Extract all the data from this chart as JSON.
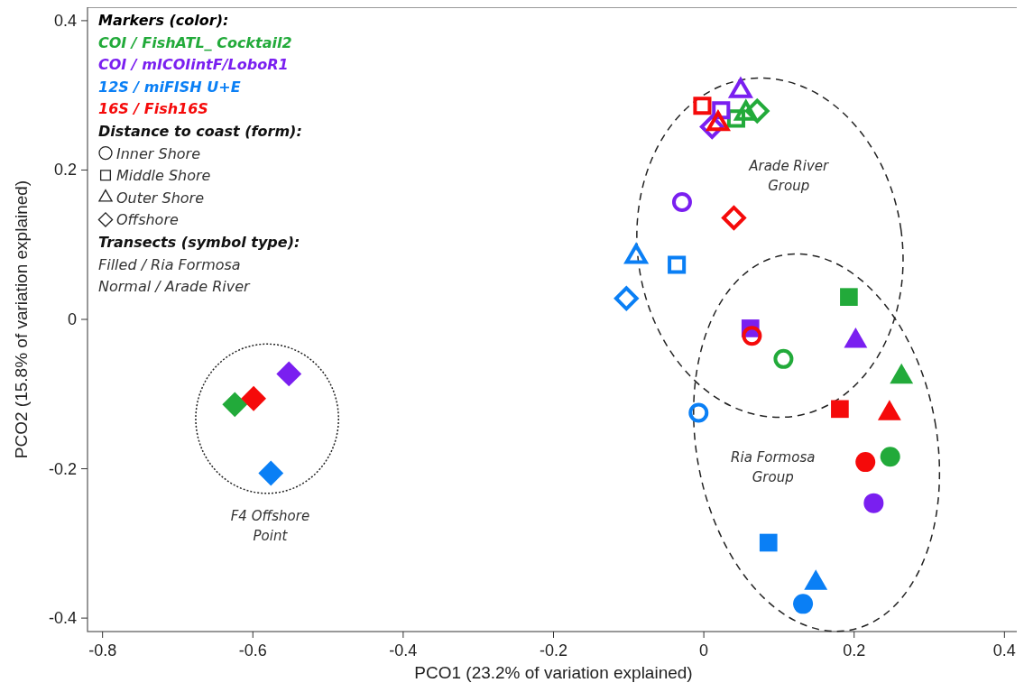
{
  "chart_data": {
    "type": "scatter",
    "xlabel": "PCO1 (23.2% of variation explained)",
    "ylabel": "PCO2 (15.8% of variation explained)",
    "legend_title": "Markers (color):",
    "legend": "top left",
    "grid": false,
    "xlim": [
      -0.82,
      0.42
    ],
    "ylim": [
      -0.418,
      0.418
    ],
    "xticks": [
      -0.8,
      -0.6,
      -0.4,
      -0.2,
      {
        "value": 0,
        "label": "0"
      },
      0.2,
      0.4
    ],
    "yticks": [
      -0.4,
      -0.2,
      {
        "value": 0,
        "label": "0"
      },
      0.2,
      0.4
    ],
    "series": [
      {
        "name": "COI / FishATL_ Cocktail2",
        "color": "#22aa3a",
        "marker": "circle",
        "x": [
          0.248,
          0.106
        ],
        "values": [
          -0.184,
          -0.053
        ]
      },
      {
        "color": "#22aa3a",
        "marker": "square",
        "x": [
          0.193,
          0.043
        ],
        "values": [
          0.03,
          0.269
        ]
      },
      {
        "color": "#22aa3a",
        "marker": "triangle",
        "x": [
          0.263,
          0.056
        ],
        "values": [
          -0.077,
          0.276
        ]
      },
      {
        "color": "#22aa3a",
        "marker": "diamond",
        "x": [
          -0.624,
          0.071
        ],
        "values": [
          -0.114,
          0.279
        ]
      },
      {
        "name": "COI / mICOIintF/LoboR1",
        "color": "#7a1ff0",
        "marker": "circle",
        "x": [
          0.226,
          -0.029
        ],
        "values": [
          -0.246,
          0.157
        ]
      },
      {
        "color": "#7a1ff0",
        "marker": "square",
        "x": [
          0.062,
          0.023
        ],
        "values": [
          -0.012,
          0.28
        ]
      },
      {
        "color": "#7a1ff0",
        "marker": "triangle",
        "x": [
          0.202,
          0.049
        ],
        "values": [
          -0.029,
          0.306
        ]
      },
      {
        "color": "#7a1ff0",
        "marker": "diamond",
        "x": [
          -0.552,
          0.011
        ],
        "values": [
          -0.073,
          0.258
        ]
      },
      {
        "name": "12S / miFISH U+E",
        "color": "#0a7ff5",
        "marker": "circle",
        "x": [
          0.132,
          -0.007
        ],
        "values": [
          -0.381,
          -0.125
        ]
      },
      {
        "color": "#0a7ff5",
        "marker": "square",
        "x": [
          0.086,
          -0.036
        ],
        "values": [
          -0.299,
          0.073
        ]
      },
      {
        "color": "#0a7ff5",
        "marker": "triangle",
        "x": [
          0.149,
          -0.09
        ],
        "values": [
          -0.353,
          0.084
        ]
      },
      {
        "color": "#0a7ff5",
        "marker": "diamond",
        "x": [
          -0.576,
          -0.103
        ],
        "values": [
          -0.206,
          0.028
        ]
      },
      {
        "name": "16S / Fish16S",
        "color": "#f50a0a",
        "marker": "circle",
        "x": [
          0.215,
          0.064
        ],
        "values": [
          -0.191,
          -0.022
        ]
      },
      {
        "color": "#f50a0a",
        "marker": "square",
        "x": [
          0.181,
          -0.002
        ],
        "values": [
          -0.12,
          0.286
        ]
      },
      {
        "color": "#f50a0a",
        "marker": "triangle",
        "x": [
          0.247,
          0.019
        ],
        "values": [
          -0.126,
          0.262
        ]
      },
      {
        "color": "#f50a0a",
        "marker": "diamond",
        "x": [
          -0.599,
          0.04
        ],
        "values": [
          -0.106,
          0.136
        ]
      }
    ],
    "annotations": [
      "Arade River Group",
      "Ria Formosa Group",
      "F4 Offshore Point",
      "Distance to coast (form):",
      "Inner Shore",
      "Middle Shore",
      "Outer Shore",
      "Offshore",
      "Transects (symbol type):",
      "Filled / Ria Formosa",
      "Normal / Arade River"
    ]
  }
}
